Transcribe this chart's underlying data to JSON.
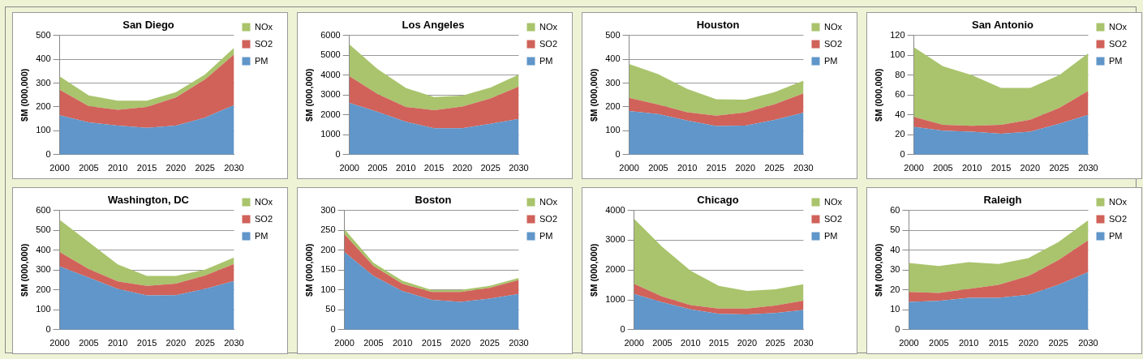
{
  "chart_data": [
    {
      "type": "area",
      "title": "San Diego",
      "ylabel": "$M (000,000)",
      "categories": [
        "2000",
        "2005",
        "2010",
        "2015",
        "2020",
        "2025",
        "2030"
      ],
      "stacked": true,
      "grid": "y",
      "legend": "top right",
      "ylim": [
        0,
        500
      ],
      "yticks": [
        0,
        100,
        200,
        300,
        400,
        500
      ],
      "series": [
        {
          "name": "PM",
          "color": "#6096c9",
          "values": [
            165,
            135,
            122,
            112,
            122,
            155,
            207
          ]
        },
        {
          "name": "SO2",
          "color": "#d0625a",
          "values": [
            107,
            68,
            66,
            88,
            118,
            160,
            213
          ]
        },
        {
          "name": "NOx",
          "color": "#a9c46c",
          "values": [
            56,
            45,
            38,
            26,
            22,
            21,
            28
          ]
        }
      ]
    },
    {
      "type": "area",
      "title": "Los Angeles",
      "ylabel": "$M (000,000)",
      "categories": [
        "2000",
        "2005",
        "2010",
        "2015",
        "2020",
        "2025",
        "2030"
      ],
      "stacked": true,
      "grid": "y",
      "legend": "top right",
      "ylim": [
        0,
        6000
      ],
      "yticks": [
        0,
        1000,
        2000,
        3000,
        4000,
        5000,
        6000
      ],
      "series": [
        {
          "name": "PM",
          "color": "#6096c9",
          "values": [
            2600,
            2150,
            1650,
            1330,
            1330,
            1550,
            1800
          ]
        },
        {
          "name": "SO2",
          "color": "#d0625a",
          "values": [
            1350,
            900,
            750,
            900,
            1090,
            1270,
            1630
          ]
        },
        {
          "name": "NOx",
          "color": "#a9c46c",
          "values": [
            1600,
            1250,
            950,
            670,
            550,
            560,
            600
          ]
        }
      ]
    },
    {
      "type": "area",
      "title": "Houston",
      "ylabel": "$M (000,000)",
      "categories": [
        "2000",
        "2005",
        "2010",
        "2015",
        "2020",
        "2025",
        "2030"
      ],
      "stacked": true,
      "grid": "y",
      "legend": "top right",
      "ylim": [
        0,
        500
      ],
      "yticks": [
        0,
        100,
        200,
        300,
        400,
        500
      ],
      "series": [
        {
          "name": "PM",
          "color": "#6096c9",
          "values": [
            183,
            170,
            143,
            120,
            122,
            145,
            176
          ]
        },
        {
          "name": "SO2",
          "color": "#d0625a",
          "values": [
            55,
            40,
            35,
            43,
            55,
            66,
            81
          ]
        },
        {
          "name": "NOx",
          "color": "#a9c46c",
          "values": [
            142,
            127,
            97,
            69,
            53,
            51,
            53
          ]
        }
      ]
    },
    {
      "type": "area",
      "title": "San Antonio",
      "ylabel": "$M (000,000)",
      "categories": [
        "2000",
        "2005",
        "2010",
        "2015",
        "2020",
        "2025",
        "2030"
      ],
      "stacked": true,
      "grid": "y",
      "legend": "top right",
      "ylim": [
        0,
        120
      ],
      "yticks": [
        0,
        20,
        40,
        60,
        80,
        100,
        120
      ],
      "series": [
        {
          "name": "PM",
          "color": "#6096c9",
          "values": [
            28,
            24,
            23,
            21,
            23,
            31,
            40
          ]
        },
        {
          "name": "SO2",
          "color": "#d0625a",
          "values": [
            10,
            6,
            6,
            9,
            12,
            16,
            24
          ]
        },
        {
          "name": "NOx",
          "color": "#a9c46c",
          "values": [
            70,
            59,
            51,
            37,
            32,
            33,
            38
          ]
        }
      ]
    },
    {
      "type": "area",
      "title": "Washington, DC",
      "ylabel": "$M (000,000)",
      "categories": [
        "2000",
        "2005",
        "2010",
        "2015",
        "2020",
        "2025",
        "2030"
      ],
      "stacked": true,
      "grid": "y",
      "legend": "top right",
      "ylim": [
        0,
        600
      ],
      "yticks": [
        0,
        100,
        200,
        300,
        400,
        500,
        600
      ],
      "series": [
        {
          "name": "PM",
          "color": "#6096c9",
          "values": [
            318,
            262,
            205,
            172,
            173,
            205,
            245
          ]
        },
        {
          "name": "SO2",
          "color": "#d0625a",
          "values": [
            72,
            43,
            38,
            48,
            59,
            67,
            85
          ]
        },
        {
          "name": "NOx",
          "color": "#a9c46c",
          "values": [
            163,
            135,
            85,
            50,
            38,
            30,
            33
          ]
        }
      ]
    },
    {
      "type": "area",
      "title": "Boston",
      "ylabel": "$M (000,000)",
      "categories": [
        "2000",
        "2005",
        "2010",
        "2015",
        "2020",
        "2025",
        "2030"
      ],
      "stacked": true,
      "grid": "y",
      "legend": "top right",
      "ylim": [
        0,
        300
      ],
      "yticks": [
        0,
        50,
        100,
        150,
        200,
        250,
        300
      ],
      "series": [
        {
          "name": "PM",
          "color": "#6096c9",
          "values": [
            195,
            135,
            97,
            75,
            70,
            78,
            90
          ]
        },
        {
          "name": "SO2",
          "color": "#d0625a",
          "values": [
            45,
            25,
            18,
            20,
            25,
            27,
            35
          ]
        },
        {
          "name": "NOx",
          "color": "#a9c46c",
          "values": [
            13,
            8,
            8,
            5,
            5,
            5,
            5
          ]
        }
      ]
    },
    {
      "type": "area",
      "title": "Chicago",
      "ylabel": "$M (000,000)",
      "categories": [
        "2000",
        "2005",
        "2010",
        "2015",
        "2020",
        "2025",
        "2030"
      ],
      "stacked": true,
      "grid": "y",
      "legend": "top right",
      "ylim": [
        0,
        4000
      ],
      "yticks": [
        0,
        1000,
        2000,
        3000,
        4000
      ],
      "series": [
        {
          "name": "PM",
          "color": "#6096c9",
          "values": [
            1200,
            920,
            680,
            530,
            510,
            560,
            660
          ]
        },
        {
          "name": "SO2",
          "color": "#d0625a",
          "values": [
            340,
            190,
            140,
            180,
            200,
            250,
            310
          ]
        },
        {
          "name": "NOx",
          "color": "#a9c46c",
          "values": [
            2180,
            1660,
            1160,
            760,
            590,
            540,
            550
          ]
        }
      ]
    },
    {
      "type": "area",
      "title": "Raleigh",
      "ylabel": "$M (000,000)",
      "categories": [
        "2000",
        "2005",
        "2010",
        "2015",
        "2020",
        "2025",
        "2030"
      ],
      "stacked": true,
      "grid": "y",
      "legend": "top right",
      "ylim": [
        0,
        60
      ],
      "yticks": [
        0,
        10,
        20,
        30,
        40,
        50,
        60
      ],
      "series": [
        {
          "name": "PM",
          "color": "#6096c9",
          "values": [
            14,
            14.5,
            16,
            16,
            17.5,
            22.5,
            29
          ]
        },
        {
          "name": "SO2",
          "color": "#d0625a",
          "values": [
            5,
            4,
            4.5,
            6.5,
            9.5,
            12.5,
            16
          ]
        },
        {
          "name": "NOx",
          "color": "#a9c46c",
          "values": [
            14.5,
            13.5,
            13.5,
            10.5,
            9,
            9,
            10
          ]
        }
      ]
    }
  ]
}
